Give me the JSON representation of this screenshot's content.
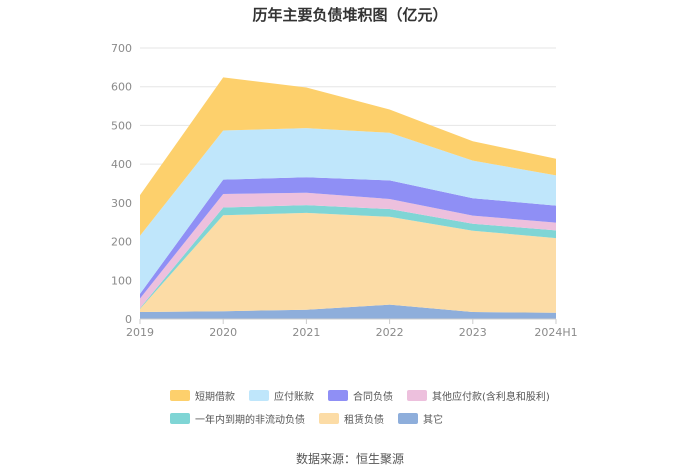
{
  "title": "历年主要负债堆积图（亿元）",
  "source": "数据来源：恒生聚源",
  "chart_data": {
    "type": "area",
    "stacked": true,
    "categories": [
      "2019",
      "2020",
      "2021",
      "2022",
      "2023",
      "2024H1"
    ],
    "ylim": [
      0,
      700
    ],
    "yticks": [
      0,
      100,
      200,
      300,
      400,
      500,
      600,
      700
    ],
    "grid": true,
    "legend_position": "bottom",
    "series": [
      {
        "name": "其它",
        "color": "#8eaedb",
        "values": [
          18,
          20,
          24,
          37,
          18,
          16
        ]
      },
      {
        "name": "租赁负债",
        "color": "#fcdca6",
        "values": [
          8,
          248,
          250,
          227,
          210,
          193
        ]
      },
      {
        "name": "一年内到期的非流动负债",
        "color": "#7fd5d5",
        "values": [
          2,
          20,
          20,
          20,
          18,
          20
        ]
      },
      {
        "name": "其他应付款(含利息和股利)",
        "color": "#edc0dd",
        "values": [
          25,
          35,
          32,
          26,
          21,
          20
        ]
      },
      {
        "name": "合同负债",
        "color": "#8f8ff5",
        "values": [
          12,
          37,
          40,
          48,
          45,
          44
        ]
      },
      {
        "name": "应付账款",
        "color": "#bfe6fb",
        "values": [
          150,
          127,
          127,
          123,
          97,
          78
        ]
      },
      {
        "name": "短期借款",
        "color": "#fdd06c",
        "values": [
          105,
          137,
          105,
          60,
          50,
          43
        ]
      }
    ]
  },
  "legend_rows": [
    [
      "短期借款",
      "应付账款",
      "合同负债",
      "其他应付款(含利息和股利)"
    ],
    [
      "一年内到期的非流动负债",
      "租赁负债",
      "其它"
    ]
  ]
}
